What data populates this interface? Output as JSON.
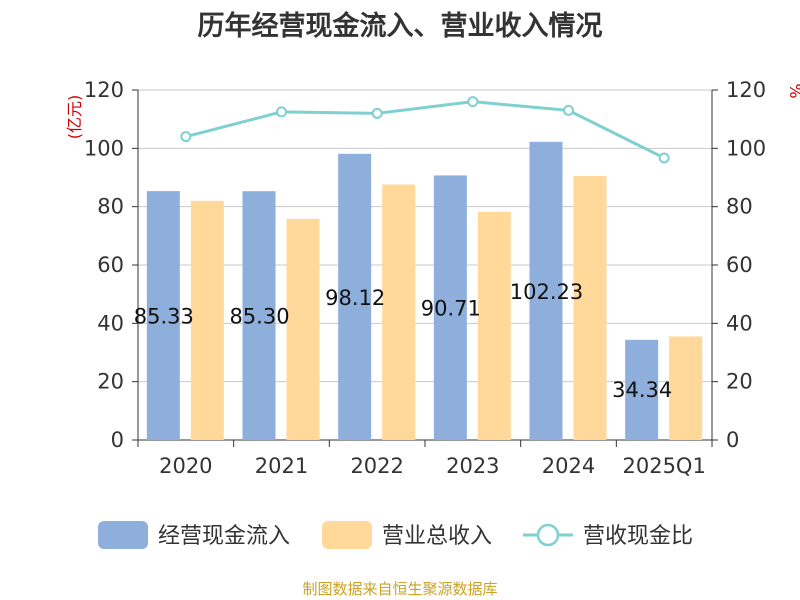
{
  "chart_data": {
    "type": "bar+line",
    "title": "历年经营现金流入、营业收入情况",
    "categories": [
      "2020",
      "2021",
      "2022",
      "2023",
      "2024",
      "2025Q1"
    ],
    "series": [
      {
        "name": "经营现金流入",
        "type": "bar",
        "axis": "left",
        "color": "#8eaedb",
        "values": [
          85.33,
          85.3,
          98.12,
          90.71,
          102.23,
          34.34
        ],
        "labels": [
          "85.33",
          "85.30",
          "98.12",
          "90.71",
          "102.23",
          "34.34"
        ]
      },
      {
        "name": "营业总收入",
        "type": "bar",
        "axis": "left",
        "color": "#ffd89a",
        "values": [
          82.0,
          75.8,
          87.6,
          78.2,
          90.5,
          35.5
        ]
      },
      {
        "name": "营收现金比",
        "type": "line",
        "axis": "right",
        "color": "#7fd0d0",
        "values": [
          104.0,
          112.5,
          112.0,
          116.0,
          113.0,
          96.7
        ]
      }
    ],
    "y_left": {
      "unit": "(亿元)",
      "ylim": [
        0,
        120
      ],
      "ticks": [
        0,
        20,
        40,
        60,
        80,
        100,
        120
      ]
    },
    "y_right": {
      "unit": "%",
      "ylim": [
        0,
        120
      ],
      "ticks": [
        0,
        20,
        40,
        60,
        80,
        100,
        120
      ]
    },
    "grid": true,
    "legend_position": "bottom"
  },
  "source": "制图数据来自恒生聚源数据库"
}
